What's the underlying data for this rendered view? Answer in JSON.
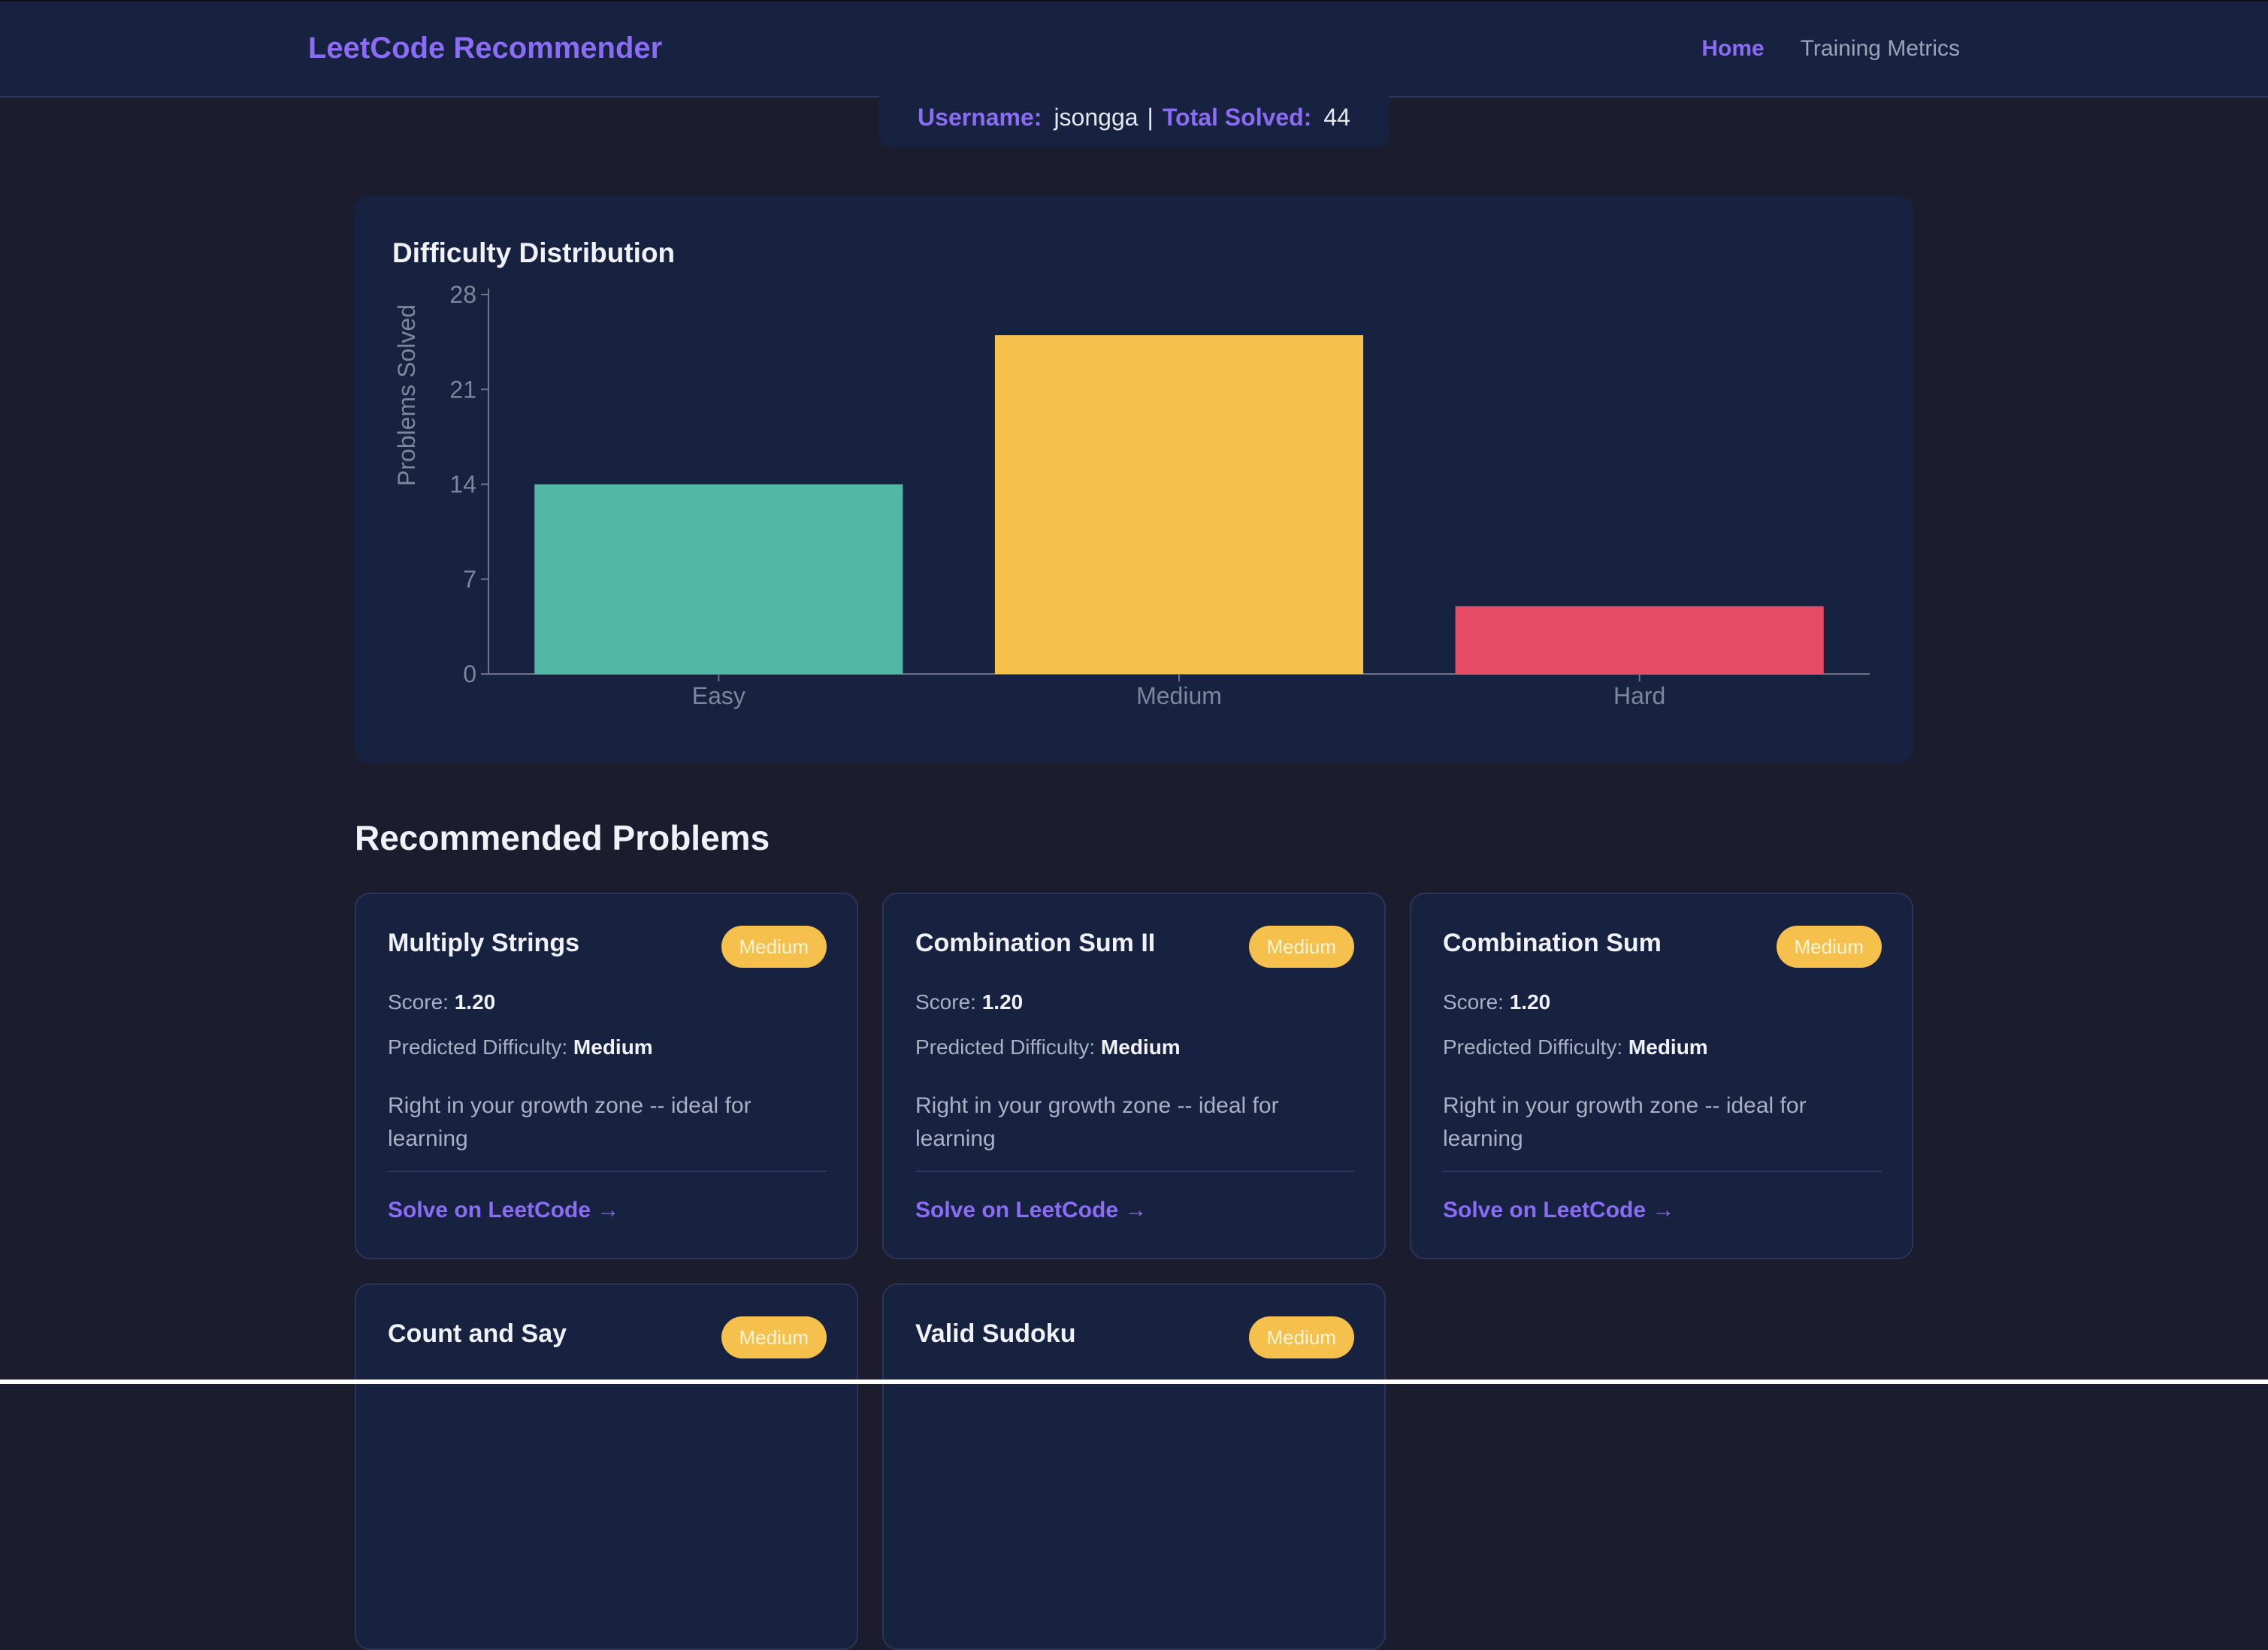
{
  "nav": {
    "brand": "LeetCode Recommender",
    "links": [
      {
        "label": "Home",
        "active": true
      },
      {
        "label": "Training Metrics",
        "active": false
      }
    ]
  },
  "user": {
    "username_label": "Username:",
    "username": "jsongga",
    "separator": "|",
    "total_label": "Total Solved:",
    "total": "44"
  },
  "chart_data": {
    "type": "bar",
    "title": "Difficulty Distribution",
    "xlabel": "",
    "ylabel": "Problems Solved",
    "categories": [
      "Easy",
      "Medium",
      "Hard"
    ],
    "values": [
      14,
      25,
      5
    ],
    "colors": [
      "#52b8a5",
      "#f5c14c",
      "#e74c66"
    ],
    "ylim": [
      0,
      28
    ],
    "yticks": [
      0,
      7,
      14,
      21,
      28
    ],
    "grid": false
  },
  "section": {
    "title": "Recommended Problems"
  },
  "labels": {
    "score": "Score:",
    "predicted": "Predicted Difficulty:",
    "solve": "Solve on LeetCode →"
  },
  "problems": [
    {
      "title": "Multiply Strings",
      "badge": "Medium",
      "score": "1.20",
      "predicted": "Medium",
      "desc": "Right in your growth zone -- ideal for learning"
    },
    {
      "title": "Combination Sum II",
      "badge": "Medium",
      "score": "1.20",
      "predicted": "Medium",
      "desc": "Right in your growth zone -- ideal for learning"
    },
    {
      "title": "Combination Sum",
      "badge": "Medium",
      "score": "1.20",
      "predicted": "Medium",
      "desc": "Right in your growth zone -- ideal for learning"
    },
    {
      "title": "Count and Say",
      "badge": "Medium"
    },
    {
      "title": "Valid Sudoku",
      "badge": "Medium"
    }
  ]
}
